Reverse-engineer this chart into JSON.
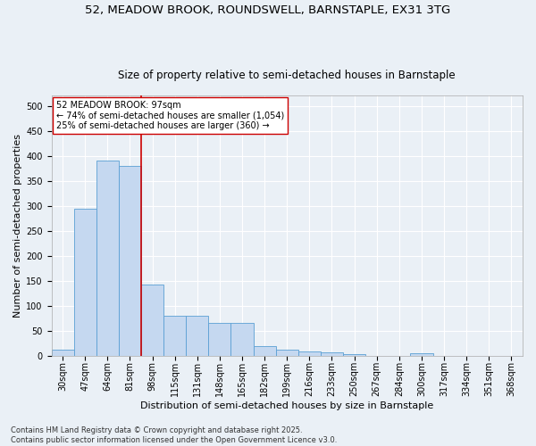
{
  "title_line1": "52, MEADOW BROOK, ROUNDSWELL, BARNSTAPLE, EX31 3TG",
  "title_line2": "Size of property relative to semi-detached houses in Barnstaple",
  "xlabel": "Distribution of semi-detached houses by size in Barnstaple",
  "ylabel": "Number of semi-detached properties",
  "categories": [
    "30sqm",
    "47sqm",
    "64sqm",
    "81sqm",
    "98sqm",
    "115sqm",
    "131sqm",
    "148sqm",
    "165sqm",
    "182sqm",
    "199sqm",
    "216sqm",
    "233sqm",
    "250sqm",
    "267sqm",
    "284sqm",
    "300sqm",
    "317sqm",
    "334sqm",
    "351sqm",
    "368sqm"
  ],
  "values": [
    13,
    295,
    390,
    380,
    143,
    80,
    80,
    65,
    65,
    20,
    12,
    8,
    6,
    3,
    0,
    0,
    5,
    0,
    0,
    0,
    0
  ],
  "bar_color": "#c5d8f0",
  "bar_edge_color": "#5a9fd4",
  "vline_x_index": 4,
  "vline_color": "#cc0000",
  "annotation_text": "52 MEADOW BROOK: 97sqm\n← 74% of semi-detached houses are smaller (1,054)\n25% of semi-detached houses are larger (360) →",
  "annotation_box_color": "#ffffff",
  "annotation_box_edge_color": "#cc0000",
  "footnote": "Contains HM Land Registry data © Crown copyright and database right 2025.\nContains public sector information licensed under the Open Government Licence v3.0.",
  "ylim": [
    0,
    520
  ],
  "yticks": [
    0,
    50,
    100,
    150,
    200,
    250,
    300,
    350,
    400,
    450,
    500
  ],
  "background_color": "#eaf0f6",
  "grid_color": "#ffffff",
  "title_fontsize": 9.5,
  "subtitle_fontsize": 8.5,
  "axis_label_fontsize": 8,
  "tick_fontsize": 7,
  "annotation_fontsize": 7,
  "footnote_fontsize": 6
}
